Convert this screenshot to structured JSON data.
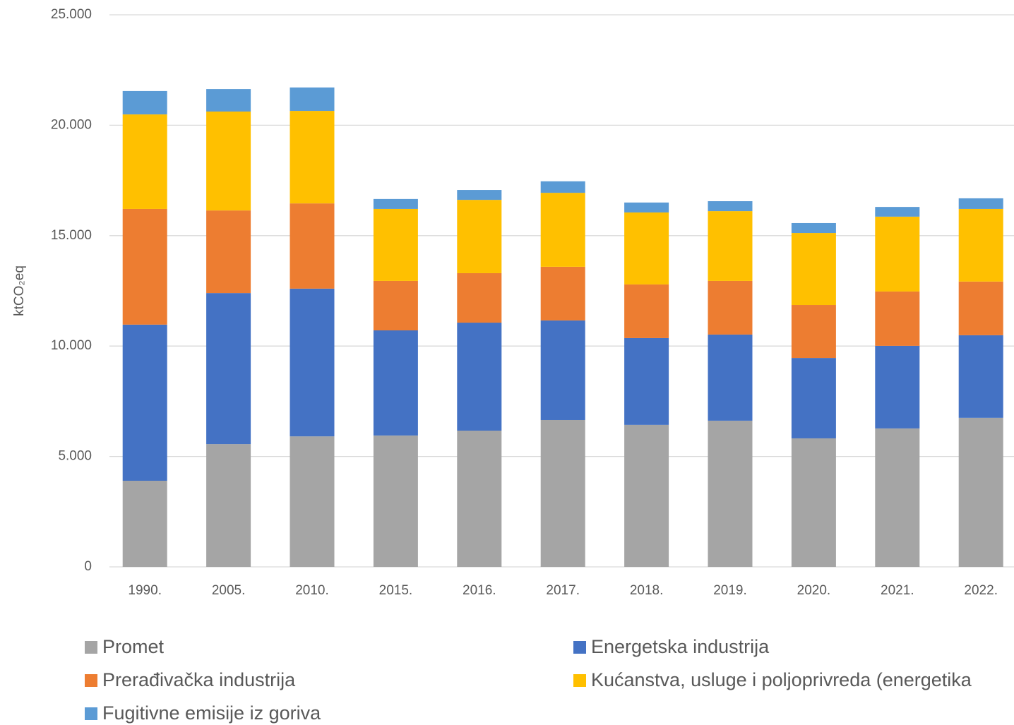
{
  "chart_data": {
    "type": "stacked_bar",
    "y_label": "ktCO₂eq",
    "categories": [
      "1990.",
      "2005.",
      "2010.",
      "2015.",
      "2016.",
      "2017.",
      "2018.",
      "2019.",
      "2020.",
      "2021.",
      "2022."
    ],
    "series": [
      {
        "name": "Promet",
        "color": "#a5a5a5",
        "values": [
          3900,
          5560,
          5910,
          5950,
          6170,
          6650,
          6430,
          6620,
          5820,
          6270,
          6750
        ]
      },
      {
        "name": "Energetska industrija",
        "color": "#4472c4",
        "values": [
          7070,
          6840,
          6690,
          4760,
          4890,
          4510,
          3930,
          3900,
          3640,
          3740,
          3740
        ]
      },
      {
        "name": "Prerađivačka industrija",
        "color": "#ed7d31",
        "values": [
          5240,
          3740,
          3860,
          2240,
          2240,
          2430,
          2430,
          2430,
          2400,
          2460,
          2430
        ]
      },
      {
        "name": "Kućanstva, usluge i poljoprivreda (energetika",
        "color": "#ffc000",
        "values": [
          4280,
          4480,
          4190,
          3260,
          3320,
          3350,
          3260,
          3160,
          3260,
          3390,
          3290
        ]
      },
      {
        "name": "Fugitivne emisije iz goriva",
        "color": "#5b9bd5",
        "values": [
          1060,
          1020,
          1060,
          450,
          450,
          520,
          450,
          450,
          450,
          440,
          480
        ]
      }
    ],
    "ylim": [
      0,
      25000
    ],
    "yticks": [
      0,
      {
        "value": 5000,
        "label": "5.000"
      },
      {
        "value": 10000,
        "label": "10.000"
      },
      {
        "value": 15000,
        "label": "15.000"
      },
      {
        "value": 20000,
        "label": "20.000"
      },
      {
        "value": 25000,
        "label": "25.000"
      }
    ],
    "grid": true,
    "legend": "bottom"
  }
}
